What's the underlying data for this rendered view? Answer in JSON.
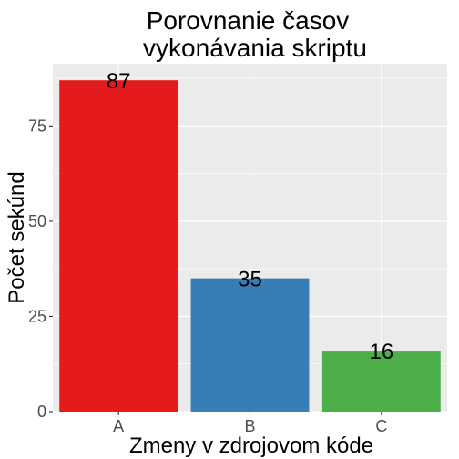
{
  "chart_data": {
    "type": "bar",
    "title_lines": [
      "Porovnanie časov",
      "vykonávania skriptu"
    ],
    "xlabel": "Zmeny v zdrojovom kóde",
    "ylabel": "Počet sekúnd",
    "categories": [
      "A",
      "B",
      "C"
    ],
    "values": [
      87,
      35,
      16
    ],
    "data_labels": [
      "87",
      "35",
      "16"
    ],
    "colors": [
      "#E41A1C",
      "#377EB8",
      "#4DAF4A"
    ],
    "ylim": [
      0,
      91.35
    ],
    "yticks": [
      0,
      25,
      50,
      75
    ],
    "ytick_labels": [
      "0",
      "25",
      "50",
      "75"
    ],
    "grid": true,
    "legend": "none",
    "panel_background": "#EBEBEB",
    "gridline_color": "#FFFFFF"
  }
}
